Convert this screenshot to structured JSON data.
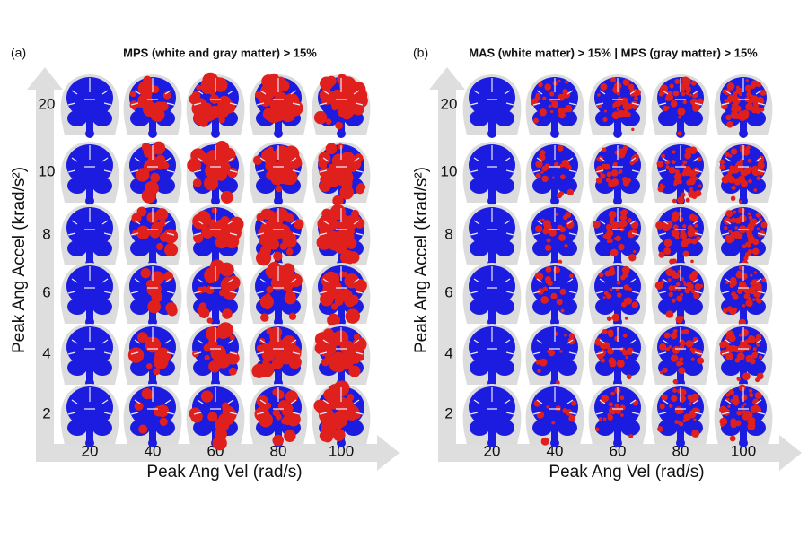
{
  "panels": [
    {
      "label": "(a)",
      "title": "MPS (white and gray matter) > 15%",
      "y_axis_label": "Peak Ang Accel (krad/s²)",
      "x_axis_label": "Peak Ang Vel (rad/s)",
      "row_labels": [
        "20",
        "10",
        "8",
        "6",
        "4",
        "2"
      ],
      "col_labels": [
        "20",
        "40",
        "60",
        "80",
        "100"
      ]
    },
    {
      "label": "(b)",
      "title": "MAS (white matter) > 15% | MPS (gray matter) > 15%",
      "y_axis_label": "Peak Ang Accel (krad/s²)",
      "x_axis_label": "Peak Ang Vel (rad/s)",
      "row_labels": [
        "20",
        "10",
        "8",
        "6",
        "4",
        "2"
      ],
      "col_labels": [
        "20",
        "40",
        "60",
        "80",
        "100"
      ]
    }
  ]
}
